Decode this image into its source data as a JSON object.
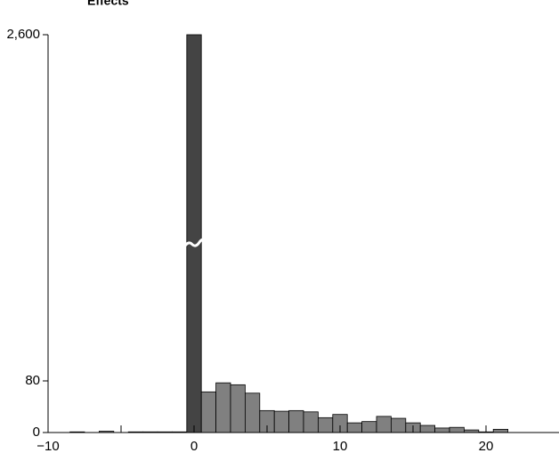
{
  "chart_data": {
    "type": "histogram",
    "title": "Effects",
    "bins": [
      -9.5,
      -8.5,
      -7.5,
      -6.5,
      -5.5,
      -4.5,
      -3.5,
      -2.5,
      -1.5,
      -0.5,
      0.5,
      1.5,
      2.5,
      3.5,
      4.5,
      5.5,
      6.5,
      7.5,
      8.5,
      9.5,
      10.5,
      11.5,
      12.5,
      13.5,
      14.5,
      15.5,
      16.5,
      17.5,
      18.5,
      19.5,
      20.5,
      21.5
    ],
    "counts": [
      0,
      1,
      0,
      2,
      0,
      1,
      1,
      1,
      1,
      2600,
      63,
      77,
      74,
      61,
      34,
      33,
      34,
      32,
      23,
      28,
      15,
      17,
      25,
      22,
      15,
      11,
      7,
      8,
      4,
      1,
      5
    ],
    "bar_colors": [
      "#808080",
      "#808080",
      "#808080",
      "#808080",
      "#808080",
      "#808080",
      "#808080",
      "#808080",
      "#808080",
      "#444444",
      "#808080",
      "#808080",
      "#808080",
      "#808080",
      "#808080",
      "#808080",
      "#808080",
      "#808080",
      "#808080",
      "#808080",
      "#808080",
      "#808080",
      "#808080",
      "#808080",
      "#808080",
      "#808080",
      "#808080",
      "#808080",
      "#808080",
      "#808080",
      "#808080"
    ],
    "xlim": [
      -10,
      25
    ],
    "xticks": [
      {
        "value": -10,
        "label": "−10"
      },
      0,
      10,
      20
    ],
    "xminorticks": [
      -5,
      5,
      15
    ],
    "ylim": [
      0,
      2600
    ],
    "yticks": [
      0,
      80,
      {
        "value": 2600,
        "label": "2,600"
      }
    ],
    "y_axis_break": true
  }
}
